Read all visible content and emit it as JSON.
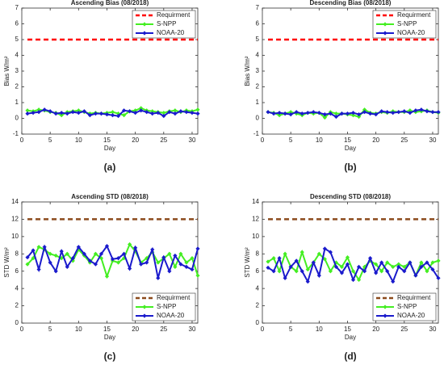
{
  "chart_data": [
    {
      "type": "line",
      "title": "Ascending Bias (08/2018)",
      "label": "(a)",
      "xlabel": "Day",
      "ylabel": "Bias W/m²",
      "x": [
        1,
        2,
        3,
        4,
        5,
        6,
        7,
        8,
        9,
        10,
        11,
        12,
        13,
        14,
        15,
        16,
        17,
        18,
        19,
        20,
        21,
        22,
        23,
        24,
        25,
        26,
        27,
        28,
        29,
        30,
        31
      ],
      "xlim": [
        0,
        31
      ],
      "xticks": [
        0,
        5,
        10,
        15,
        20,
        25,
        30
      ],
      "ylim": [
        -1,
        7
      ],
      "yticks": [
        -1,
        0,
        1,
        2,
        3,
        4,
        5,
        6,
        7
      ],
      "legend": "upper right",
      "series": [
        {
          "name": "Requirment",
          "color": "#ff0000",
          "dashed": true,
          "values": [
            5,
            5,
            5,
            5,
            5,
            5,
            5,
            5,
            5,
            5,
            5,
            5,
            5,
            5,
            5,
            5,
            5,
            5,
            5,
            5,
            5,
            5,
            5,
            5,
            5,
            5,
            5,
            5,
            5,
            5,
            5
          ]
        },
        {
          "name": "S-NPP",
          "color": "#44ee22",
          "values": [
            0.5,
            0.45,
            0.55,
            0.5,
            0.4,
            0.35,
            0.2,
            0.4,
            0.45,
            0.5,
            0.4,
            0.3,
            0.35,
            0.3,
            0.35,
            0.4,
            0.3,
            0.2,
            0.45,
            0.5,
            0.65,
            0.5,
            0.45,
            0.4,
            0.35,
            0.45,
            0.5,
            0.4,
            0.5,
            0.45,
            0.55
          ]
        },
        {
          "name": "NOAA-20",
          "color": "#1a1acc",
          "values": [
            0.3,
            0.35,
            0.4,
            0.55,
            0.45,
            0.3,
            0.35,
            0.3,
            0.4,
            0.35,
            0.45,
            0.2,
            0.3,
            0.3,
            0.25,
            0.2,
            0.15,
            0.5,
            0.45,
            0.35,
            0.5,
            0.4,
            0.3,
            0.35,
            0.15,
            0.4,
            0.3,
            0.45,
            0.4,
            0.35,
            0.3
          ]
        }
      ]
    },
    {
      "type": "line",
      "title": "Descending Bias (08/2018)",
      "label": "(b)",
      "xlabel": "Day",
      "ylabel": "Bias W/m²",
      "x": [
        1,
        2,
        3,
        4,
        5,
        6,
        7,
        8,
        9,
        10,
        11,
        12,
        13,
        14,
        15,
        16,
        17,
        18,
        19,
        20,
        21,
        22,
        23,
        24,
        25,
        26,
        27,
        28,
        29,
        30,
        31
      ],
      "xlim": [
        0,
        31
      ],
      "xticks": [
        0,
        5,
        10,
        15,
        20,
        25,
        30
      ],
      "ylim": [
        -1,
        7
      ],
      "yticks": [
        -1,
        0,
        1,
        2,
        3,
        4,
        5,
        6,
        7
      ],
      "legend": "upper right",
      "series": [
        {
          "name": "Requirment",
          "color": "#ff0000",
          "dashed": true,
          "values": [
            5,
            5,
            5,
            5,
            5,
            5,
            5,
            5,
            5,
            5,
            5,
            5,
            5,
            5,
            5,
            5,
            5,
            5,
            5,
            5,
            5,
            5,
            5,
            5,
            5,
            5,
            5,
            5,
            5,
            5,
            5
          ]
        },
        {
          "name": "S-NPP",
          "color": "#44ee22",
          "values": [
            0.4,
            0.35,
            0.2,
            0.3,
            0.4,
            0.3,
            0.2,
            0.35,
            0.3,
            0.35,
            0.05,
            0.4,
            0.3,
            0.3,
            0.25,
            0.2,
            0.1,
            0.55,
            0.35,
            0.3,
            0.4,
            0.35,
            0.45,
            0.4,
            0.4,
            0.5,
            0.4,
            0.45,
            0.5,
            0.4,
            0.35
          ]
        },
        {
          "name": "NOAA-20",
          "color": "#1a1acc",
          "values": [
            0.4,
            0.3,
            0.35,
            0.3,
            0.25,
            0.4,
            0.3,
            0.35,
            0.4,
            0.35,
            0.25,
            0.3,
            0.1,
            0.3,
            0.3,
            0.35,
            0.25,
            0.4,
            0.3,
            0.25,
            0.45,
            0.4,
            0.35,
            0.4,
            0.45,
            0.35,
            0.5,
            0.55,
            0.45,
            0.4,
            0.4
          ]
        }
      ]
    },
    {
      "type": "line",
      "title": "Ascending STD (08/2018)",
      "label": "(c)",
      "xlabel": "Day",
      "ylabel": "STD W/m²",
      "x": [
        1,
        2,
        3,
        4,
        5,
        6,
        7,
        8,
        9,
        10,
        11,
        12,
        13,
        14,
        15,
        16,
        17,
        18,
        19,
        20,
        21,
        22,
        23,
        24,
        25,
        26,
        27,
        28,
        29,
        30,
        31
      ],
      "xlim": [
        0,
        31
      ],
      "xticks": [
        0,
        5,
        10,
        15,
        20,
        25,
        30
      ],
      "ylim": [
        0,
        14
      ],
      "yticks": [
        0,
        2,
        4,
        6,
        8,
        10,
        12,
        14
      ],
      "legend": "lower right",
      "series": [
        {
          "name": "Requirment",
          "color": "#8b4a1c",
          "dashed": true,
          "values": [
            12,
            12,
            12,
            12,
            12,
            12,
            12,
            12,
            12,
            12,
            12,
            12,
            12,
            12,
            12,
            12,
            12,
            12,
            12,
            12,
            12,
            12,
            12,
            12,
            12,
            12,
            12,
            12,
            12,
            12,
            12
          ]
        },
        {
          "name": "S-NPP",
          "color": "#44ee22",
          "values": [
            6.8,
            7.5,
            8.8,
            8.5,
            8.0,
            7.8,
            7.5,
            8.0,
            7.2,
            8.5,
            7.8,
            7.0,
            8.0,
            7.5,
            5.4,
            7.2,
            7.0,
            7.5,
            9.1,
            8.3,
            7.0,
            7.5,
            8.2,
            7.0,
            7.5,
            8.0,
            6.5,
            8.0,
            7.0,
            7.5,
            5.5
          ]
        },
        {
          "name": "NOAA-20",
          "color": "#1a1acc",
          "values": [
            7.6,
            8.4,
            6.2,
            8.8,
            7.0,
            6.0,
            8.3,
            6.5,
            7.5,
            8.8,
            8.0,
            7.2,
            6.8,
            8.0,
            8.9,
            7.4,
            7.5,
            8.0,
            6.3,
            8.7,
            6.8,
            7.0,
            8.5,
            5.2,
            7.6,
            6.0,
            7.8,
            6.8,
            6.5,
            6.2,
            8.6
          ]
        }
      ]
    },
    {
      "type": "line",
      "title": "Descending STD (08/2018)",
      "label": "(d)",
      "xlabel": "Day",
      "ylabel": "STD W/m²",
      "x": [
        1,
        2,
        3,
        4,
        5,
        6,
        7,
        8,
        9,
        10,
        11,
        12,
        13,
        14,
        15,
        16,
        17,
        18,
        19,
        20,
        21,
        22,
        23,
        24,
        25,
        26,
        27,
        28,
        29,
        30,
        31
      ],
      "xlim": [
        0,
        31
      ],
      "xticks": [
        0,
        5,
        10,
        15,
        20,
        25,
        30
      ],
      "ylim": [
        0,
        14
      ],
      "yticks": [
        0,
        2,
        4,
        6,
        8,
        10,
        12,
        14
      ],
      "legend": "lower right",
      "series": [
        {
          "name": "Requirment",
          "color": "#8b4a1c",
          "dashed": true,
          "values": [
            12,
            12,
            12,
            12,
            12,
            12,
            12,
            12,
            12,
            12,
            12,
            12,
            12,
            12,
            12,
            12,
            12,
            12,
            12,
            12,
            12,
            12,
            12,
            12,
            12,
            12,
            12,
            12,
            12,
            12,
            12
          ]
        },
        {
          "name": "S-NPP",
          "color": "#44ee22",
          "values": [
            7.1,
            7.5,
            6.0,
            8.0,
            6.5,
            6.0,
            8.2,
            6.2,
            7.0,
            8.0,
            7.4,
            6.0,
            7.0,
            6.5,
            7.6,
            6.0,
            5.0,
            6.5,
            7.2,
            6.8,
            6.0,
            7.0,
            6.5,
            6.8,
            6.5,
            7.0,
            5.5,
            7.0,
            6.0,
            7.0,
            7.2
          ]
        },
        {
          "name": "NOAA-20",
          "color": "#1a1acc",
          "values": [
            6.4,
            6.0,
            7.5,
            5.2,
            6.5,
            7.2,
            6.0,
            4.8,
            7.0,
            5.5,
            8.6,
            8.2,
            6.5,
            5.8,
            6.8,
            5.0,
            6.5,
            6.0,
            7.5,
            5.8,
            7.0,
            6.0,
            4.8,
            6.5,
            6.0,
            7.0,
            5.5,
            6.5,
            7.0,
            6.2,
            5.2
          ]
        }
      ]
    }
  ]
}
